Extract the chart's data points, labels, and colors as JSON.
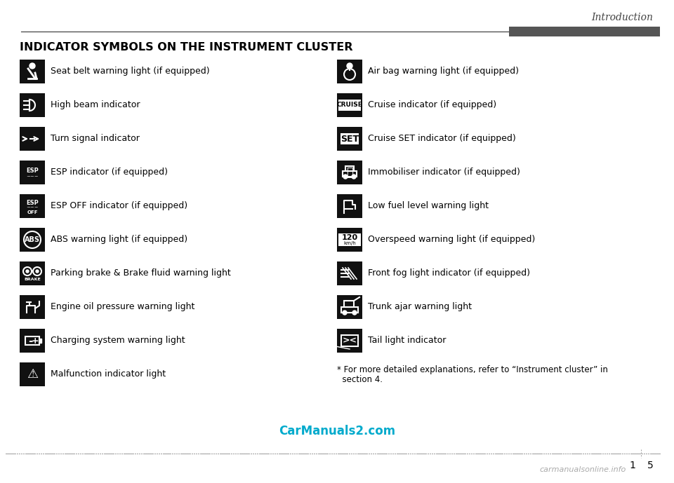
{
  "title": "Introduction",
  "section_title": "INDICATOR SYMBOLS ON THE INSTRUMENT CLUSTER",
  "left_items": [
    {
      "symbol": "seatbelt",
      "text": "Seat belt warning light (if equipped)"
    },
    {
      "symbol": "highbeam",
      "text": "High beam indicator"
    },
    {
      "symbol": "turnsignal",
      "text": "Turn signal indicator"
    },
    {
      "symbol": "esp",
      "text": "ESP indicator (if equipped)"
    },
    {
      "symbol": "espoff",
      "text": "ESP OFF indicator (if equipped)"
    },
    {
      "symbol": "abs",
      "text": "ABS warning light (if equipped)"
    },
    {
      "symbol": "brake",
      "text": "Parking brake & Brake fluid warning light"
    },
    {
      "symbol": "oilpressure",
      "text": "Engine oil pressure warning light"
    },
    {
      "symbol": "charging",
      "text": "Charging system warning light"
    },
    {
      "symbol": "malfunction",
      "text": "Malfunction indicator light"
    }
  ],
  "right_items": [
    {
      "symbol": "airbag",
      "text": "Air bag warning light (if equipped)"
    },
    {
      "symbol": "cruise",
      "text": "Cruise indicator (if equipped)"
    },
    {
      "symbol": "cruiseset",
      "text": "Cruise SET indicator (if equipped)"
    },
    {
      "symbol": "immobiliser",
      "text": "Immobiliser indicator (if equipped)"
    },
    {
      "symbol": "lowfuel",
      "text": "Low fuel level warning light"
    },
    {
      "symbol": "overspeed",
      "text": "Overspeed warning light (if equipped)"
    },
    {
      "symbol": "frontfog",
      "text": "Front fog light indicator (if equipped)"
    },
    {
      "symbol": "trunk",
      "text": "Trunk ajar warning light"
    },
    {
      "symbol": "taillight",
      "text": "Tail light indicator"
    }
  ],
  "footnote1": "* For more detailed explanations, refer to “Instrument cluster” in",
  "footnote2": "  section 4.",
  "page_num": "1",
  "page_num2": "5",
  "watermark": "CarManuals2.com",
  "watermark_color": "#00AACC",
  "bottom_watermark": "carmanualsonline.info",
  "bg_color": "#ffffff",
  "text_color": "#000000",
  "header_bar_color": "#555555",
  "icon_bg": "#111111",
  "icon_fg": "#ffffff",
  "dashed_line_color": "#999999",
  "header_line_color": "#333333"
}
